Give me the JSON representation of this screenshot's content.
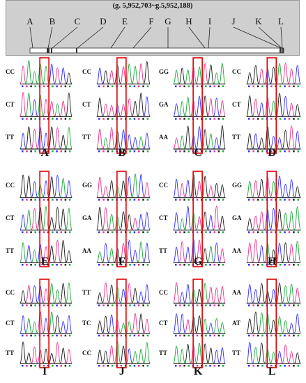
{
  "gene": {
    "coordinates": "(g. 5,952,703~g.5,952,188)",
    "site_labels": [
      "A",
      "B",
      "C",
      "D",
      "E",
      "F",
      "G",
      "H",
      "I",
      "J",
      "K",
      "L"
    ]
  },
  "panels": [
    {
      "letter": "A",
      "genotypes": [
        "CC",
        "CT",
        "TT"
      ]
    },
    {
      "letter": "B",
      "genotypes": [
        "CC",
        "CT",
        "TT"
      ]
    },
    {
      "letter": "C",
      "genotypes": [
        "GG",
        "GA",
        "AA"
      ]
    },
    {
      "letter": "D",
      "genotypes": [
        "CC",
        "CT",
        "TT"
      ]
    },
    {
      "letter": "E",
      "genotypes": [
        "CC",
        "CT",
        "TT"
      ]
    },
    {
      "letter": "F",
      "genotypes": [
        "GG",
        "GA",
        "AA"
      ]
    },
    {
      "letter": "G",
      "genotypes": [
        "CC",
        "CT",
        "TT"
      ]
    },
    {
      "letter": "H",
      "genotypes": [
        "GG",
        "GA",
        "AA"
      ]
    },
    {
      "letter": "I",
      "genotypes": [
        "CC",
        "CT",
        "TT"
      ]
    },
    {
      "letter": "J",
      "genotypes": [
        "TT",
        "TC",
        "CC"
      ]
    },
    {
      "letter": "K",
      "genotypes": [
        "CC",
        "CT",
        "TT"
      ]
    },
    {
      "letter": "L",
      "genotypes": [
        "AA",
        "AT",
        "TT"
      ]
    }
  ],
  "colors": {
    "trace": [
      "#2c2cff",
      "#e8308a",
      "#1a1a1a",
      "#1aa83a"
    ],
    "highlight": "#e00000",
    "panel_bg": "#cfcfcf"
  }
}
